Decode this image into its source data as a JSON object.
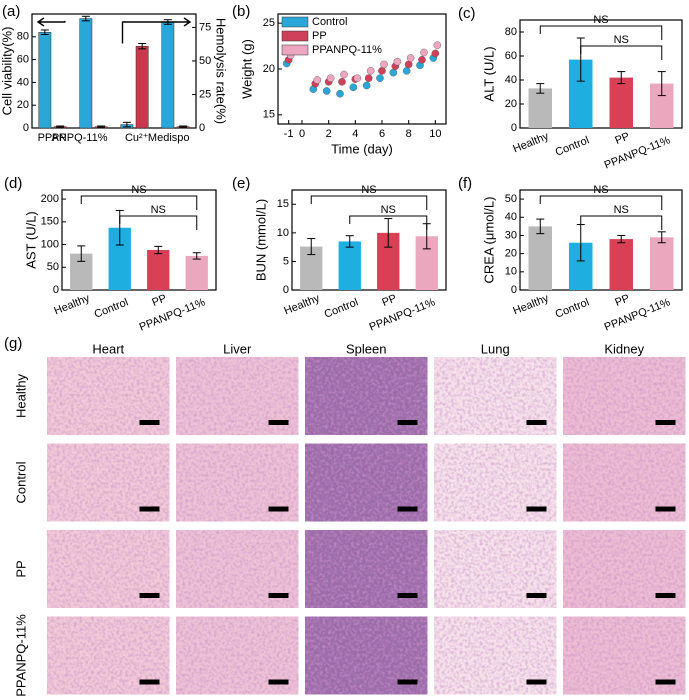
{
  "chart_data": [
    {
      "panel": "(a)",
      "type": "bar",
      "categories": [
        "PP",
        "PPANPQ-11%",
        "Cu²⁺",
        "Medispo"
      ],
      "ylabel": "Cell viability(%)",
      "y2label": "Hemolysis rate(%)",
      "ylim": [
        0,
        100
      ],
      "yticks": [
        0,
        20,
        40,
        60,
        80
      ],
      "y2lim": [
        0,
        85
      ],
      "y2ticks": [
        0,
        25,
        50,
        75
      ],
      "series": [
        {
          "color": "#2aa7d6",
          "values": [
            84,
            96,
            3,
            93
          ],
          "errors": [
            2,
            2,
            2,
            2
          ]
        },
        {
          "color": "#c9384d",
          "axis": "y2",
          "values": [
            1,
            1,
            61,
            1
          ],
          "errors": [
            0.5,
            0.5,
            2,
            0.5
          ]
        }
      ]
    },
    {
      "panel": "(b)",
      "type": "scatter",
      "xlabel": "Time (day)",
      "ylabel": "Weight (g)",
      "xlim": [
        -1.8,
        10.8
      ],
      "xticks": [
        -1,
        0,
        2,
        4,
        6,
        8,
        10
      ],
      "ylim": [
        14,
        26
      ],
      "yticks": [
        15,
        20,
        25
      ],
      "x": [
        -1,
        1,
        2,
        3,
        4,
        5,
        6,
        7,
        8,
        9,
        10
      ],
      "series": [
        {
          "name": "Control",
          "color": "#2aa7d6",
          "values": [
            20.6,
            17.8,
            17.6,
            17.3,
            18.0,
            18.2,
            19.0,
            19.6,
            19.8,
            20.4,
            21.2
          ]
        },
        {
          "name": "PP",
          "color": "#d0405a",
          "values": [
            21.0,
            18.4,
            18.6,
            18.6,
            18.9,
            19.0,
            19.8,
            20.3,
            20.5,
            21.0,
            21.7
          ]
        },
        {
          "name": "PPANPQ-11%",
          "color": "#eda6c0",
          "values": [
            21.5,
            18.8,
            19.0,
            19.4,
            19.0,
            19.8,
            20.5,
            20.8,
            21.2,
            21.8,
            22.6
          ]
        }
      ]
    },
    {
      "panel": "(c)",
      "type": "bar",
      "ylabel": "ALT (U/L)",
      "categories": [
        "Healthy",
        "Control",
        "PP",
        "PPANPQ-11%"
      ],
      "colors": [
        "#b9b9b9",
        "#1eaee0",
        "#d93f55",
        "#eaa7be"
      ],
      "values": [
        33,
        57,
        42,
        37
      ],
      "errors": [
        4,
        18,
        5,
        10
      ],
      "ylim": [
        0,
        90
      ],
      "yticks": [
        0,
        20,
        40,
        60,
        80
      ],
      "annotations": [
        "NS",
        "NS"
      ]
    },
    {
      "panel": "(d)",
      "type": "bar",
      "ylabel": "AST (U/L)",
      "categories": [
        "Healthy",
        "Control",
        "PP",
        "PPANPQ-11%"
      ],
      "colors": [
        "#b9b9b9",
        "#1eaee0",
        "#d93f55",
        "#eaa7be"
      ],
      "values": [
        80,
        137,
        88,
        75
      ],
      "errors": [
        17,
        38,
        8,
        7
      ],
      "ylim": [
        0,
        220
      ],
      "yticks": [
        0,
        50,
        100,
        150,
        200
      ],
      "annotations": [
        "NS",
        "NS"
      ]
    },
    {
      "panel": "(e)",
      "type": "bar",
      "ylabel": "BUN (mmol/L)",
      "categories": [
        "Healthy",
        "Control",
        "PP",
        "PPANPQ-11%"
      ],
      "colors": [
        "#b9b9b9",
        "#1eaee0",
        "#d93f55",
        "#eaa7be"
      ],
      "values": [
        7.6,
        8.5,
        10.0,
        9.4
      ],
      "errors": [
        1.4,
        1.0,
        2.5,
        2.2
      ],
      "ylim": [
        0,
        17.5
      ],
      "yticks": [
        0,
        5,
        10,
        15
      ],
      "annotations": [
        "NS",
        "NS"
      ]
    },
    {
      "panel": "(f)",
      "type": "bar",
      "ylabel": "CREA (μmol/L)",
      "categories": [
        "Healthy",
        "Control",
        "PP",
        "PPANPQ-11%"
      ],
      "colors": [
        "#b9b9b9",
        "#1eaee0",
        "#d93f55",
        "#eaa7be"
      ],
      "values": [
        35,
        26,
        28,
        29
      ],
      "errors": [
        4,
        10,
        2,
        3
      ],
      "ylim": [
        0,
        55
      ],
      "yticks": [
        0,
        10,
        20,
        30,
        40,
        50
      ],
      "annotations": [
        "NS",
        "NS"
      ]
    }
  ],
  "histology": {
    "panel": "(g)",
    "columns": [
      "Heart",
      "Liver",
      "Spleen",
      "Lung",
      "Kidney"
    ],
    "rows": [
      "Healthy",
      "Control",
      "PP",
      "PPANPQ-11%"
    ]
  }
}
